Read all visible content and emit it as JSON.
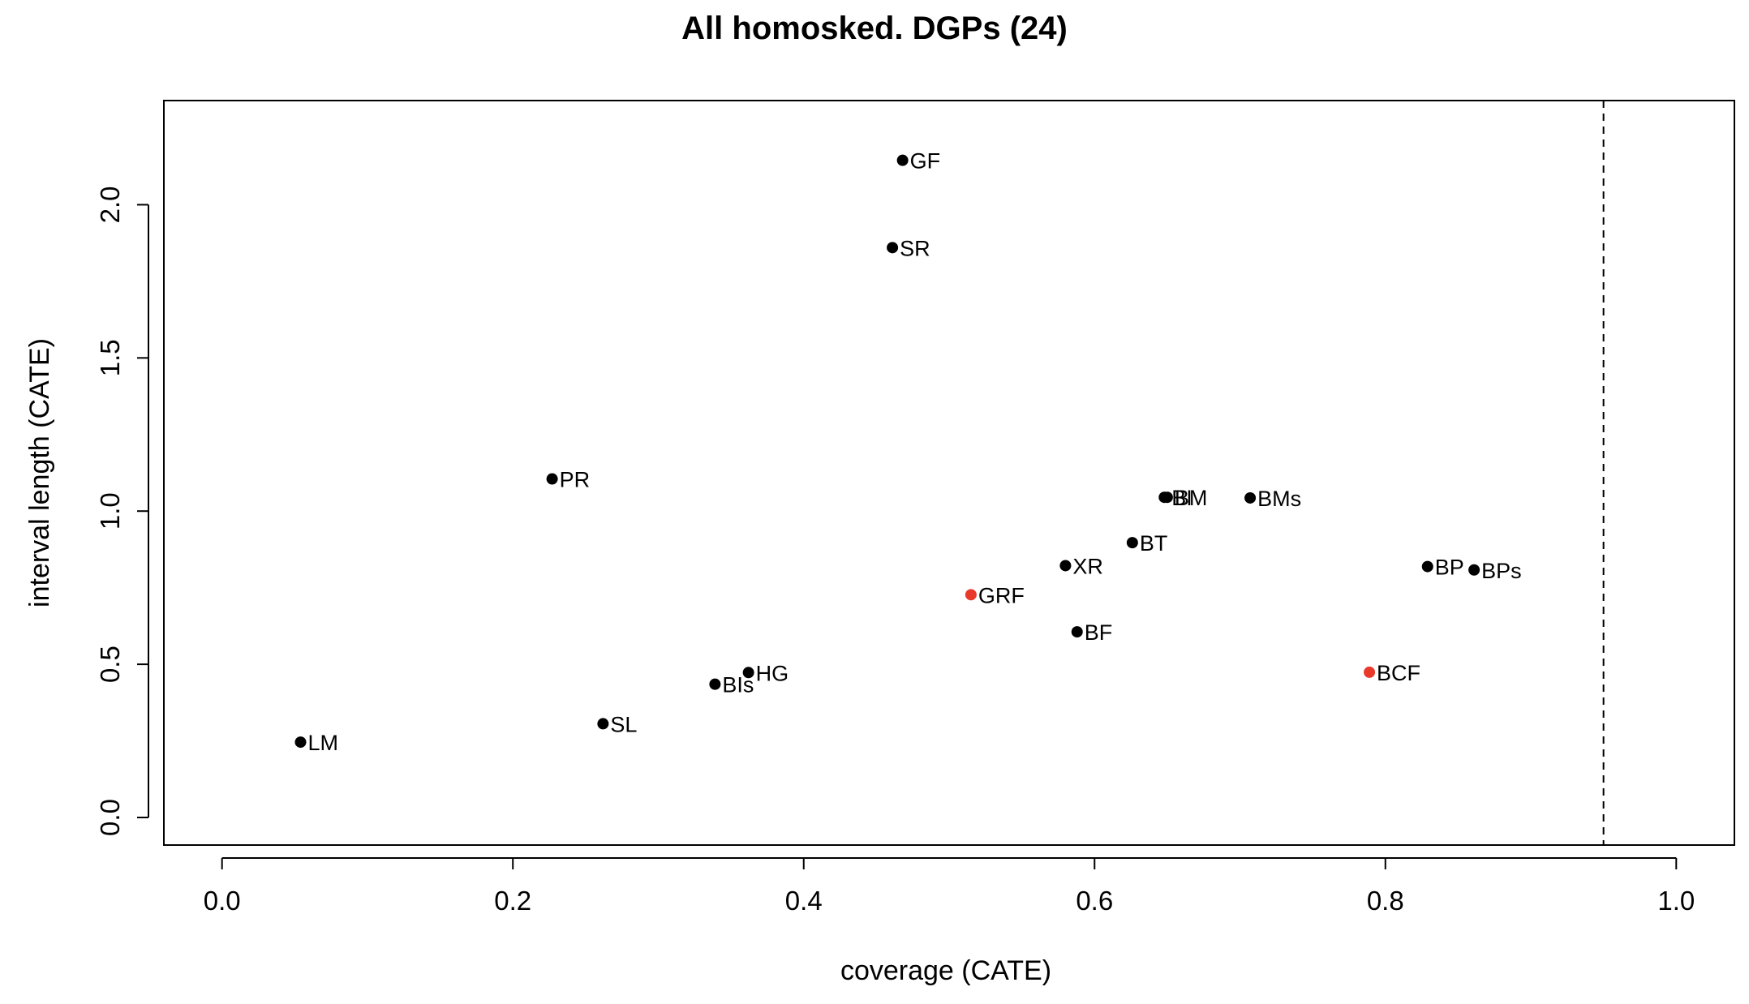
{
  "chart_data": {
    "type": "scatter",
    "title": "All homosked. DGPs (24)",
    "xlabel": "coverage (CATE)",
    "ylabel": "interval length (CATE)",
    "xlim": [
      -0.04,
      1.04
    ],
    "ylim": [
      -0.09,
      2.34
    ],
    "xticks": [
      "0.0",
      "0.2",
      "0.4",
      "0.6",
      "0.8",
      "1.0"
    ],
    "yticks": [
      "0.0",
      "0.5",
      "1.0",
      "1.5",
      "2.0"
    ],
    "xtick_values": [
      0.0,
      0.2,
      0.4,
      0.6,
      0.8,
      1.0
    ],
    "ytick_values": [
      0.0,
      0.5,
      1.0,
      1.5,
      2.0
    ],
    "reference_line": {
      "x": 0.95,
      "style": "dashed"
    },
    "grid": false,
    "points": [
      {
        "label": "GF",
        "x": 0.468,
        "y": 2.145,
        "color": "#000000"
      },
      {
        "label": "SR",
        "x": 0.461,
        "y": 1.86,
        "color": "#000000"
      },
      {
        "label": "PR",
        "x": 0.227,
        "y": 1.105,
        "color": "#000000"
      },
      {
        "label": "BI",
        "x": 0.648,
        "y": 1.045,
        "color": "#000000"
      },
      {
        "label": "BM",
        "x": 0.65,
        "y": 1.045,
        "color": "#000000"
      },
      {
        "label": "BMs",
        "x": 0.707,
        "y": 1.043,
        "color": "#000000"
      },
      {
        "label": "BT",
        "x": 0.626,
        "y": 0.897,
        "color": "#000000"
      },
      {
        "label": "XR",
        "x": 0.58,
        "y": 0.822,
        "color": "#000000"
      },
      {
        "label": "BP",
        "x": 0.829,
        "y": 0.819,
        "color": "#000000"
      },
      {
        "label": "BPs",
        "x": 0.861,
        "y": 0.808,
        "color": "#000000"
      },
      {
        "label": "GRF",
        "x": 0.515,
        "y": 0.727,
        "color": "#e8392b"
      },
      {
        "label": "BF",
        "x": 0.588,
        "y": 0.606,
        "color": "#000000"
      },
      {
        "label": "BCF",
        "x": 0.789,
        "y": 0.474,
        "color": "#e8392b"
      },
      {
        "label": "HG",
        "x": 0.362,
        "y": 0.473,
        "color": "#000000"
      },
      {
        "label": "BIs",
        "x": 0.339,
        "y": 0.435,
        "color": "#000000"
      },
      {
        "label": "SL",
        "x": 0.262,
        "y": 0.306,
        "color": "#000000"
      },
      {
        "label": "LM",
        "x": 0.054,
        "y": 0.246,
        "color": "#000000"
      }
    ]
  }
}
